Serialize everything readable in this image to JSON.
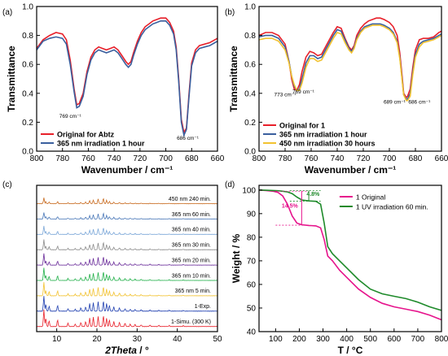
{
  "chart_data": [
    {
      "panel_label": "(a)",
      "type": "line",
      "xlabel": "Wavenumber / cm⁻¹",
      "ylabel": "Transmittance",
      "xlim": [
        800,
        660
      ],
      "ylim": [
        0.0,
        1.0
      ],
      "xticks": [
        800,
        780,
        760,
        740,
        720,
        700,
        680,
        660
      ],
      "yticks": [
        0.0,
        0.2,
        0.4,
        0.6,
        0.8,
        1.0
      ],
      "legend_position": "bottom-left",
      "annotations": [
        {
          "text": "769 cm⁻¹",
          "x": 774,
          "y": 0.23
        },
        {
          "text": "686 cm⁻¹",
          "x": 683,
          "y": 0.08
        }
      ],
      "series": [
        {
          "name": "Original for Abtz",
          "color": "#e8202a",
          "x": [
            800,
            795,
            790,
            785,
            780,
            777,
            774,
            771,
            769,
            767,
            764,
            761,
            758,
            755,
            752,
            749,
            746,
            743,
            740,
            737,
            734,
            731,
            729,
            727,
            725,
            722,
            719,
            716,
            713,
            710,
            707,
            704,
            700,
            697,
            694,
            692,
            690,
            688,
            686,
            684,
            682,
            680,
            677,
            674,
            670,
            666,
            662,
            660
          ],
          "y": [
            0.71,
            0.77,
            0.8,
            0.82,
            0.81,
            0.77,
            0.63,
            0.43,
            0.32,
            0.33,
            0.4,
            0.55,
            0.65,
            0.7,
            0.72,
            0.71,
            0.7,
            0.71,
            0.72,
            0.7,
            0.66,
            0.62,
            0.6,
            0.62,
            0.68,
            0.76,
            0.82,
            0.86,
            0.88,
            0.9,
            0.91,
            0.92,
            0.92,
            0.89,
            0.83,
            0.72,
            0.5,
            0.22,
            0.13,
            0.16,
            0.4,
            0.61,
            0.7,
            0.73,
            0.74,
            0.75,
            0.77,
            0.78
          ]
        },
        {
          "name": "365 nm irradiation 1 hour",
          "color": "#3a5f9e",
          "x": [
            800,
            795,
            790,
            785,
            780,
            777,
            774,
            771,
            769,
            767,
            764,
            761,
            758,
            755,
            752,
            749,
            746,
            743,
            740,
            737,
            734,
            731,
            729,
            727,
            725,
            722,
            719,
            716,
            713,
            710,
            707,
            704,
            700,
            697,
            694,
            692,
            690,
            688,
            686,
            684,
            682,
            680,
            677,
            674,
            670,
            666,
            662,
            660
          ],
          "y": [
            0.7,
            0.76,
            0.78,
            0.79,
            0.78,
            0.74,
            0.6,
            0.41,
            0.3,
            0.31,
            0.38,
            0.53,
            0.63,
            0.68,
            0.7,
            0.69,
            0.68,
            0.69,
            0.7,
            0.68,
            0.64,
            0.6,
            0.58,
            0.6,
            0.66,
            0.74,
            0.8,
            0.84,
            0.86,
            0.88,
            0.89,
            0.9,
            0.9,
            0.87,
            0.81,
            0.7,
            0.48,
            0.2,
            0.11,
            0.15,
            0.38,
            0.59,
            0.68,
            0.71,
            0.72,
            0.73,
            0.75,
            0.76
          ]
        }
      ]
    },
    {
      "panel_label": "(b)",
      "type": "line",
      "xlabel": "Wavenumber / cm⁻¹",
      "ylabel": "Transmittance",
      "xlim": [
        800,
        660
      ],
      "ylim": [
        0.0,
        1.0
      ],
      "xticks": [
        800,
        780,
        760,
        740,
        720,
        700,
        680,
        660
      ],
      "yticks": [
        0.0,
        0.2,
        0.4,
        0.6,
        0.8,
        1.0
      ],
      "legend_position": "bottom-left",
      "annotations": [
        {
          "text": "773 cm⁻¹",
          "x": 780,
          "y": 0.38
        },
        {
          "text": "769 cm⁻¹",
          "x": 766,
          "y": 0.4
        },
        {
          "text": "689 cm⁻¹",
          "x": 696,
          "y": 0.33
        },
        {
          "text": "686 cm⁻¹",
          "x": 677,
          "y": 0.33
        }
      ],
      "series": [
        {
          "name": "Original for 1",
          "color": "#e8202a",
          "x": [
            800,
            795,
            790,
            785,
            780,
            777,
            775,
            773,
            771,
            769,
            767,
            764,
            761,
            758,
            755,
            752,
            749,
            746,
            743,
            740,
            737,
            734,
            731,
            729,
            727,
            725,
            722,
            719,
            716,
            713,
            710,
            707,
            704,
            700,
            697,
            694,
            692,
            690,
            689,
            687,
            686,
            684,
            682,
            680,
            677,
            674,
            670,
            666,
            662,
            660
          ],
          "y": [
            0.8,
            0.82,
            0.82,
            0.8,
            0.74,
            0.62,
            0.5,
            0.43,
            0.42,
            0.46,
            0.55,
            0.65,
            0.69,
            0.68,
            0.66,
            0.67,
            0.72,
            0.77,
            0.82,
            0.86,
            0.85,
            0.78,
            0.72,
            0.7,
            0.73,
            0.8,
            0.85,
            0.88,
            0.9,
            0.91,
            0.92,
            0.92,
            0.91,
            0.89,
            0.86,
            0.8,
            0.68,
            0.5,
            0.4,
            0.37,
            0.38,
            0.43,
            0.58,
            0.7,
            0.77,
            0.78,
            0.78,
            0.79,
            0.82,
            0.83
          ]
        },
        {
          "name": "365 nm irradiation 1 hour",
          "color": "#3a5f9e",
          "x": [
            800,
            795,
            790,
            785,
            780,
            777,
            775,
            773,
            771,
            769,
            767,
            764,
            761,
            758,
            755,
            752,
            749,
            746,
            743,
            740,
            737,
            734,
            731,
            729,
            727,
            725,
            722,
            719,
            716,
            713,
            710,
            707,
            704,
            700,
            697,
            694,
            692,
            690,
            689,
            687,
            686,
            684,
            682,
            680,
            677,
            674,
            670,
            666,
            662,
            660
          ],
          "y": [
            0.79,
            0.8,
            0.8,
            0.78,
            0.72,
            0.62,
            0.52,
            0.45,
            0.42,
            0.43,
            0.5,
            0.61,
            0.66,
            0.66,
            0.64,
            0.65,
            0.7,
            0.75,
            0.8,
            0.84,
            0.83,
            0.77,
            0.71,
            0.69,
            0.72,
            0.78,
            0.83,
            0.86,
            0.87,
            0.88,
            0.88,
            0.88,
            0.87,
            0.85,
            0.82,
            0.76,
            0.65,
            0.48,
            0.39,
            0.36,
            0.36,
            0.4,
            0.55,
            0.67,
            0.74,
            0.76,
            0.77,
            0.78,
            0.8,
            0.81
          ]
        },
        {
          "name": "450 nm irradiation 30 hours",
          "color": "#f2c230",
          "x": [
            800,
            795,
            790,
            785,
            780,
            777,
            775,
            773,
            771,
            769,
            767,
            764,
            761,
            758,
            755,
            752,
            749,
            746,
            743,
            740,
            737,
            734,
            731,
            729,
            727,
            725,
            722,
            719,
            716,
            713,
            710,
            707,
            704,
            700,
            697,
            694,
            692,
            690,
            689,
            687,
            686,
            684,
            682,
            680,
            677,
            674,
            670,
            666,
            662,
            660
          ],
          "y": [
            0.77,
            0.78,
            0.78,
            0.76,
            0.7,
            0.61,
            0.52,
            0.46,
            0.42,
            0.42,
            0.47,
            0.58,
            0.64,
            0.64,
            0.62,
            0.63,
            0.68,
            0.73,
            0.78,
            0.82,
            0.81,
            0.75,
            0.7,
            0.68,
            0.71,
            0.77,
            0.82,
            0.85,
            0.86,
            0.87,
            0.87,
            0.87,
            0.86,
            0.84,
            0.81,
            0.75,
            0.64,
            0.47,
            0.39,
            0.35,
            0.35,
            0.38,
            0.53,
            0.65,
            0.72,
            0.75,
            0.76,
            0.77,
            0.79,
            0.8
          ]
        }
      ]
    },
    {
      "panel_label": "(c)",
      "type": "line",
      "xlabel": "2Theta / °",
      "ylabel": "",
      "xlim": [
        5,
        50
      ],
      "xticks": [
        10,
        20,
        30,
        40,
        50
      ],
      "peak_positions": [
        6.8,
        7.3,
        8.1,
        10.2,
        12.8,
        14.6,
        16.0,
        17.2,
        18.2,
        19.1,
        20.3,
        21.6,
        22.4,
        23.1,
        24.2,
        25.6,
        27.0,
        28.3,
        29.5,
        31.0,
        33.2,
        35.4,
        38.0,
        41.5
      ],
      "series": [
        {
          "name": "1-Simu. (300 K)",
          "color": "#e8202a",
          "peak_heights": [
            1.0,
            0.5,
            0.35,
            0.4,
            0.2,
            0.15,
            0.25,
            0.3,
            0.5,
            0.55,
            0.6,
            0.65,
            0.5,
            0.4,
            0.3,
            0.25,
            0.2,
            0.15,
            0.12,
            0.1,
            0.08,
            0.07,
            0.06,
            0.05
          ]
        },
        {
          "name": "1-Exp.",
          "color": "#1f3fb0",
          "peak_heights": [
            0.9,
            0.4,
            0.3,
            0.35,
            0.15,
            0.12,
            0.2,
            0.25,
            0.45,
            0.5,
            0.55,
            0.6,
            0.45,
            0.35,
            0.25,
            0.2,
            0.15,
            0.12,
            0.1,
            0.08,
            0.06,
            0.05,
            0.05,
            0.04
          ]
        },
        {
          "name": "365 nm 5 min.",
          "color": "#f2c230",
          "peak_heights": [
            0.8,
            0.3,
            0.25,
            0.3,
            0.12,
            0.1,
            0.18,
            0.22,
            0.4,
            0.45,
            0.5,
            0.55,
            0.4,
            0.3,
            0.22,
            0.18,
            0.12,
            0.1,
            0.08,
            0.07,
            0.05,
            0.04,
            0.04,
            0.03
          ]
        },
        {
          "name": "365 nm 10 min.",
          "color": "#22b04a",
          "peak_heights": [
            0.75,
            0.3,
            0.25,
            0.28,
            0.12,
            0.1,
            0.18,
            0.22,
            0.38,
            0.42,
            0.48,
            0.52,
            0.38,
            0.28,
            0.2,
            0.16,
            0.12,
            0.1,
            0.08,
            0.07,
            0.05,
            0.04,
            0.04,
            0.03
          ]
        },
        {
          "name": "365 nm 20 min.",
          "color": "#6a2c9a",
          "peak_heights": [
            0.7,
            0.25,
            0.2,
            0.25,
            0.1,
            0.08,
            0.15,
            0.2,
            0.35,
            0.4,
            0.45,
            0.5,
            0.35,
            0.25,
            0.18,
            0.15,
            0.1,
            0.08,
            0.07,
            0.06,
            0.05,
            0.04,
            0.03,
            0.03
          ]
        },
        {
          "name": "365 nm 30 min.",
          "color": "#8c8c8c",
          "peak_heights": [
            0.6,
            0.2,
            0.18,
            0.22,
            0.08,
            0.07,
            0.12,
            0.18,
            0.3,
            0.35,
            0.4,
            0.45,
            0.3,
            0.22,
            0.15,
            0.12,
            0.08,
            0.07,
            0.06,
            0.05,
            0.04,
            0.03,
            0.03,
            0.02
          ]
        },
        {
          "name": "365 nm 40 min.",
          "color": "#7ba7d8",
          "peak_heights": [
            0.5,
            0.18,
            0.15,
            0.18,
            0.07,
            0.06,
            0.1,
            0.15,
            0.25,
            0.3,
            0.35,
            0.4,
            0.25,
            0.18,
            0.12,
            0.1,
            0.07,
            0.06,
            0.05,
            0.04,
            0.03,
            0.03,
            0.02,
            0.02
          ]
        },
        {
          "name": "365 nm 60 min.",
          "color": "#4a78b8",
          "peak_heights": [
            0.4,
            0.15,
            0.12,
            0.15,
            0.06,
            0.05,
            0.08,
            0.12,
            0.2,
            0.25,
            0.3,
            0.35,
            0.22,
            0.15,
            0.1,
            0.08,
            0.06,
            0.05,
            0.04,
            0.03,
            0.03,
            0.02,
            0.02,
            0.02
          ]
        },
        {
          "name": "450 nm 240 min.",
          "color": "#c86a1e",
          "peak_heights": [
            0.35,
            0.12,
            0.1,
            0.12,
            0.05,
            0.04,
            0.07,
            0.1,
            0.18,
            0.22,
            0.28,
            0.32,
            0.2,
            0.14,
            0.09,
            0.07,
            0.05,
            0.04,
            0.03,
            0.03,
            0.02,
            0.02,
            0.02,
            0.01
          ]
        }
      ]
    },
    {
      "panel_label": "(d)",
      "type": "line",
      "xlabel": "T / °C",
      "ylabel": "Weight / %",
      "xlim": [
        30,
        800
      ],
      "ylim": [
        40,
        102
      ],
      "xticks": [
        100,
        200,
        300,
        400,
        500,
        600,
        700,
        800
      ],
      "yticks": [
        40,
        50,
        60,
        70,
        80,
        90,
        100
      ],
      "legend_position": "top-right",
      "annotations": [
        {
          "text": "4.8%",
          "x": 258,
          "y": 97.5
        },
        {
          "text": "14.5%",
          "x": 160,
          "y": 92.5
        }
      ],
      "series": [
        {
          "name": "1 Original",
          "color": "#e6148c",
          "x": [
            30,
            60,
            90,
            110,
            130,
            150,
            170,
            190,
            210,
            240,
            270,
            290,
            305,
            320,
            340,
            370,
            400,
            450,
            500,
            550,
            600,
            650,
            700,
            750,
            800
          ],
          "y": [
            100,
            99.8,
            99.5,
            99,
            97.5,
            94,
            89,
            86,
            85.3,
            85,
            84.8,
            84,
            79,
            72,
            70,
            66,
            63,
            58,
            54.5,
            52,
            50.5,
            49.5,
            48.5,
            47,
            45
          ]
        },
        {
          "name": "1 UV irradiation 60 min.",
          "color": "#1e8a2a",
          "x": [
            30,
            60,
            90,
            110,
            130,
            150,
            170,
            190,
            210,
            240,
            270,
            290,
            305,
            320,
            340,
            370,
            400,
            450,
            500,
            550,
            600,
            650,
            700,
            750,
            800
          ],
          "y": [
            100,
            99.9,
            99.8,
            99.7,
            99.5,
            99.2,
            98.5,
            97,
            95.8,
            95.4,
            95.2,
            94,
            86,
            76,
            73,
            70,
            67,
            62,
            58,
            56,
            55,
            54,
            52.5,
            50.5,
            49
          ]
        }
      ]
    }
  ]
}
